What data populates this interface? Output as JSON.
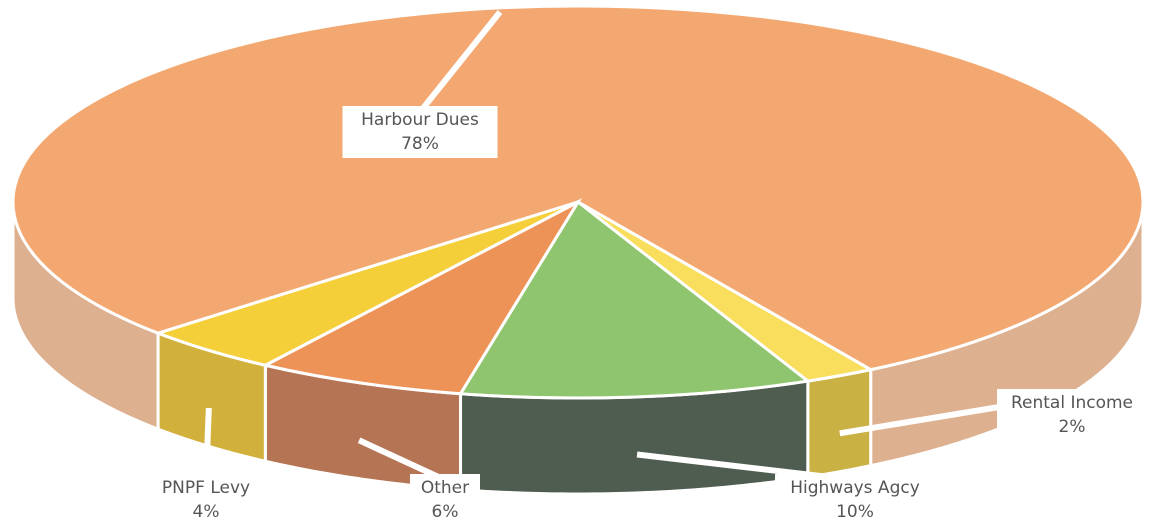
{
  "chart_data": {
    "type": "pie3d",
    "categories": [
      "Harbour Dues",
      "Rental Income",
      "Highways Agcy",
      "Other",
      "PNPF Levy"
    ],
    "values": [
      78,
      2,
      10,
      6,
      4
    ],
    "value_labels": [
      "78%",
      "2%",
      "10%",
      "6%",
      "4%"
    ],
    "colors": [
      "#f4a871",
      "#f8de5c",
      "#8fc56e",
      "#ee9358",
      "#f4cf3a"
    ],
    "side_colors": [
      "#ddb08f",
      "#c9b144",
      "#4f5c50",
      "#b57454",
      "#d2b03c"
    ]
  }
}
